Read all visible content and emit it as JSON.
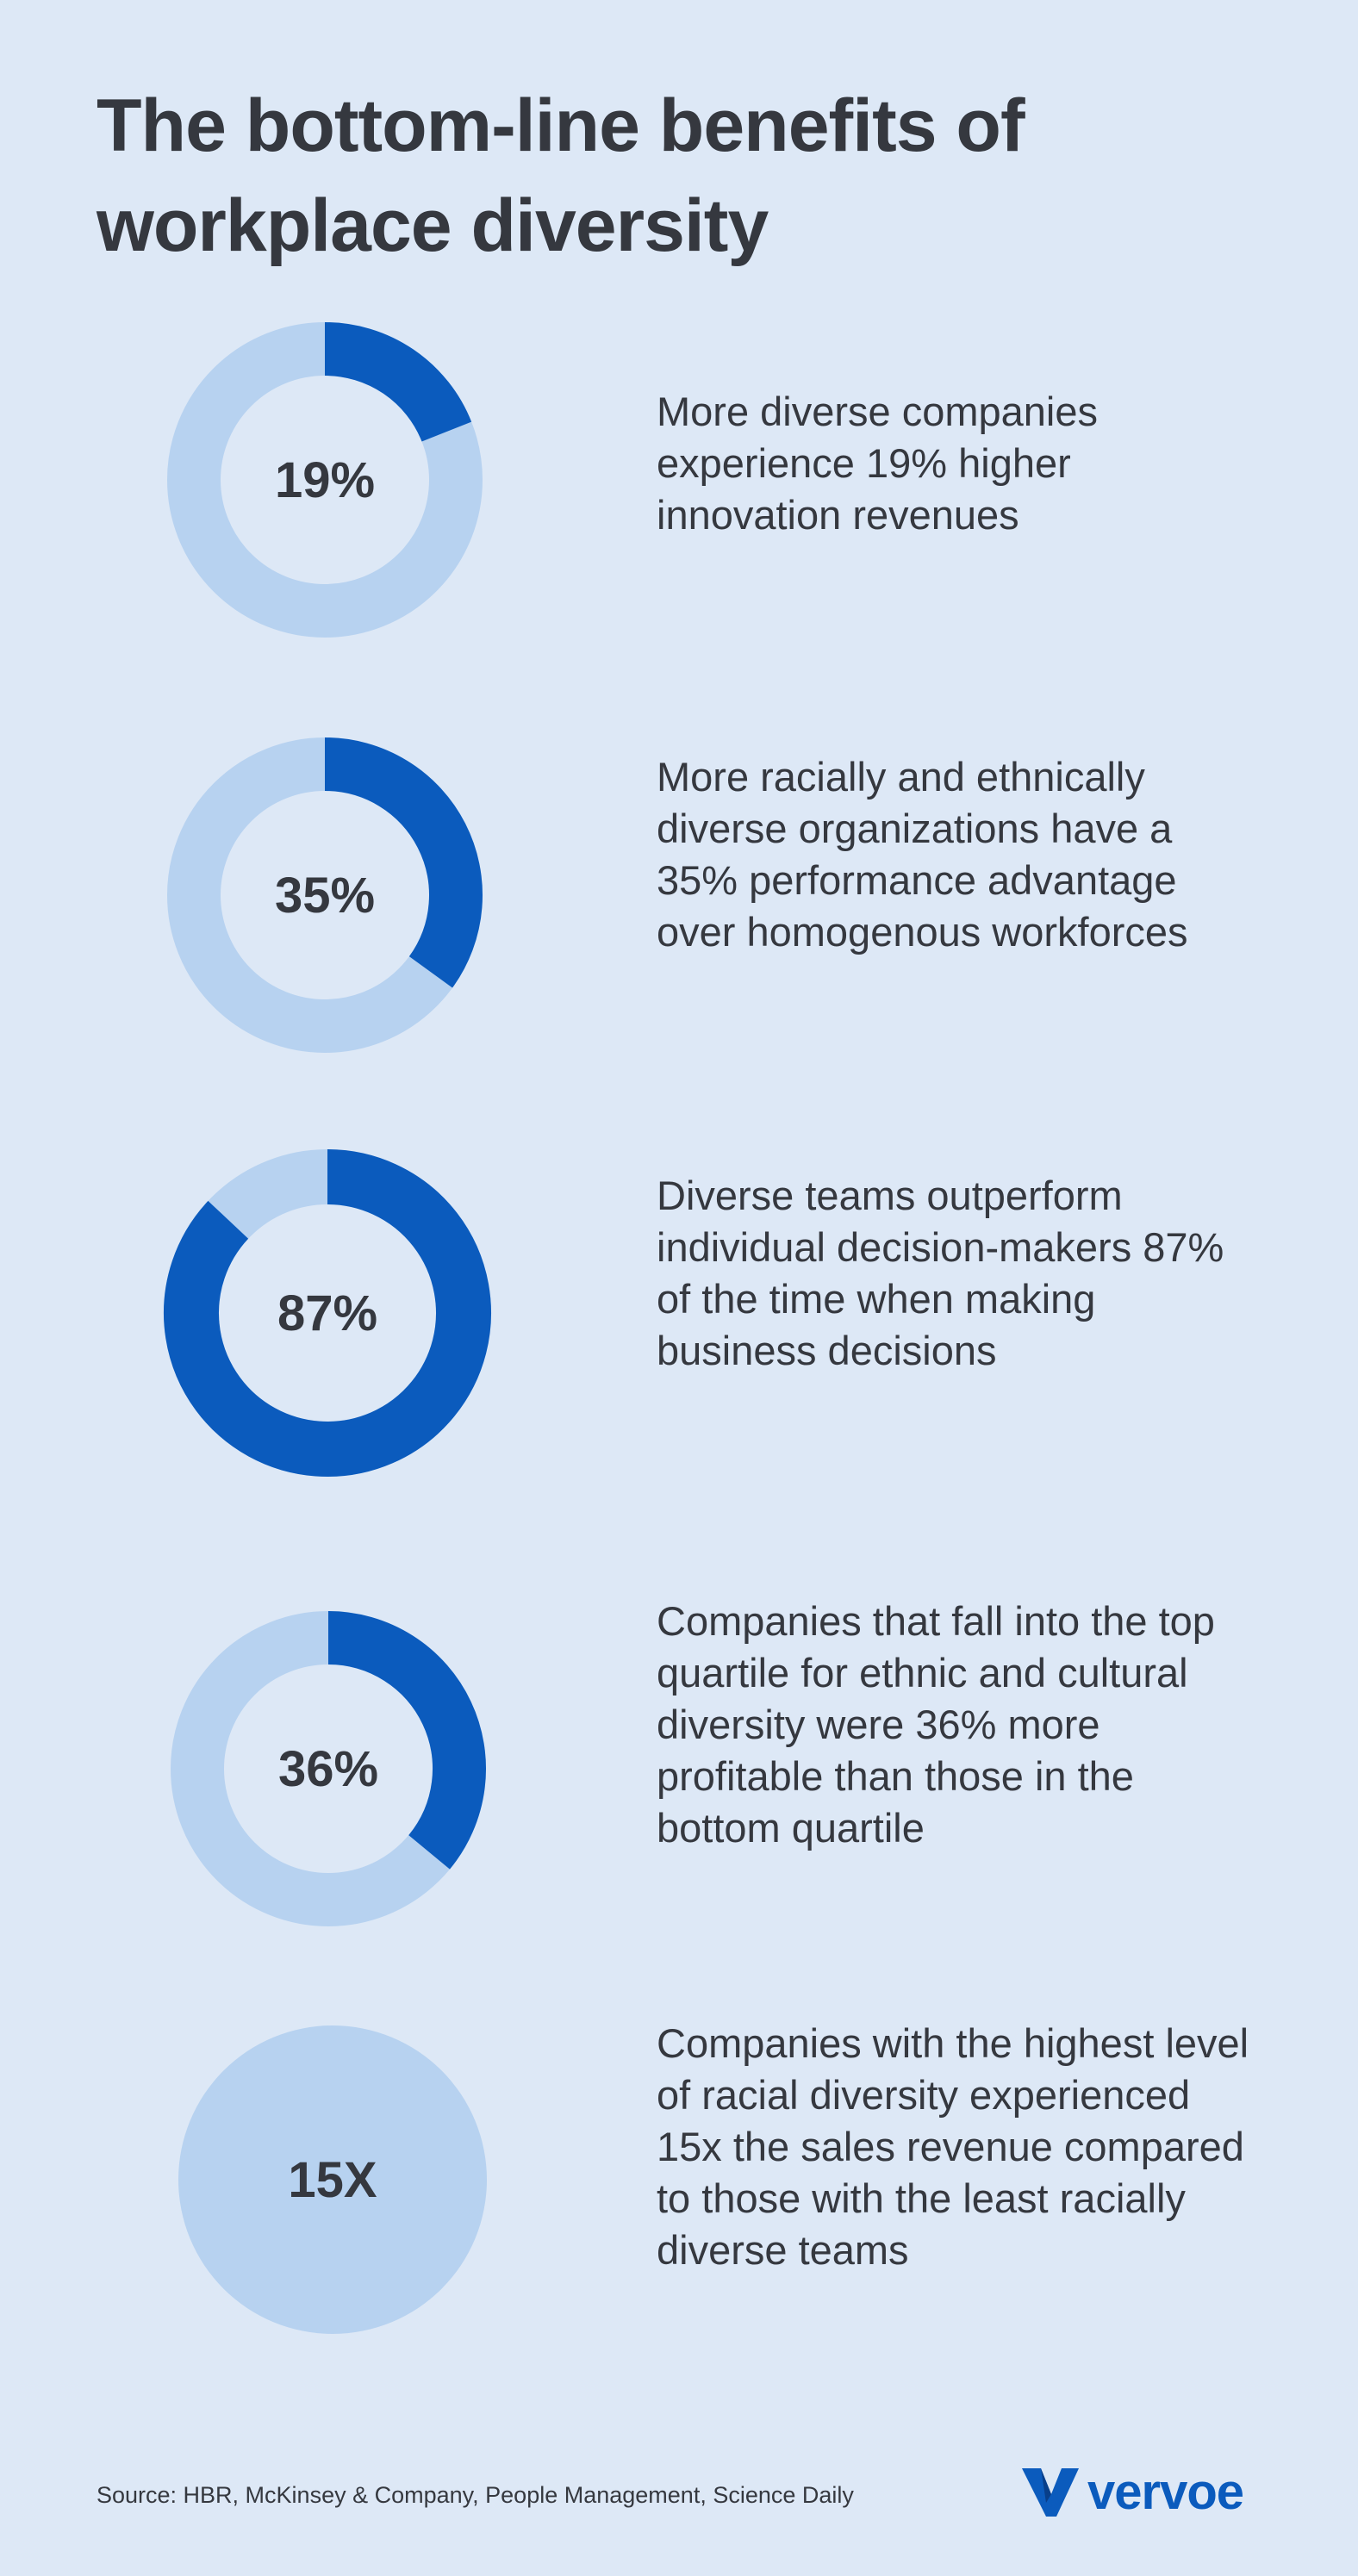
{
  "title": "The bottom-line benefits of workplace diversity",
  "colors": {
    "background": "#dde8f6",
    "track": "#b7d2f0",
    "fill": "#0b5bbd",
    "text": "#35383f"
  },
  "chart_data": [
    {
      "type": "pie",
      "display": "19%",
      "value": 19,
      "max": 100,
      "description": "More diverse companies experience 19% higher innovation revenues"
    },
    {
      "type": "pie",
      "display": "35%",
      "value": 35,
      "max": 100,
      "description": "More racially and ethnically diverse organizations have a 35% performance advantage over homogenous workforces"
    },
    {
      "type": "pie",
      "display": "87%",
      "value": 87,
      "max": 100,
      "description": "Diverse teams outperform individual decision-makers 87% of the time when making business decisions"
    },
    {
      "type": "pie",
      "display": "36%",
      "value": 36,
      "max": 100,
      "description": "Companies that fall into the top quartile for ethnic and cultural diversity were 36% more profitable than those in the bottom quartile"
    },
    {
      "type": "pie",
      "display": "15X",
      "value": null,
      "max": null,
      "description": "Companies with the highest level of racial diversity experienced 15x the sales revenue compared to those with the least racially diverse teams"
    }
  ],
  "footer": {
    "source": "Source: HBR, McKinsey & Company, People Management, Science Daily",
    "logo_text": "vervoe",
    "logo_icon": "vervoe-v-logo-icon"
  }
}
